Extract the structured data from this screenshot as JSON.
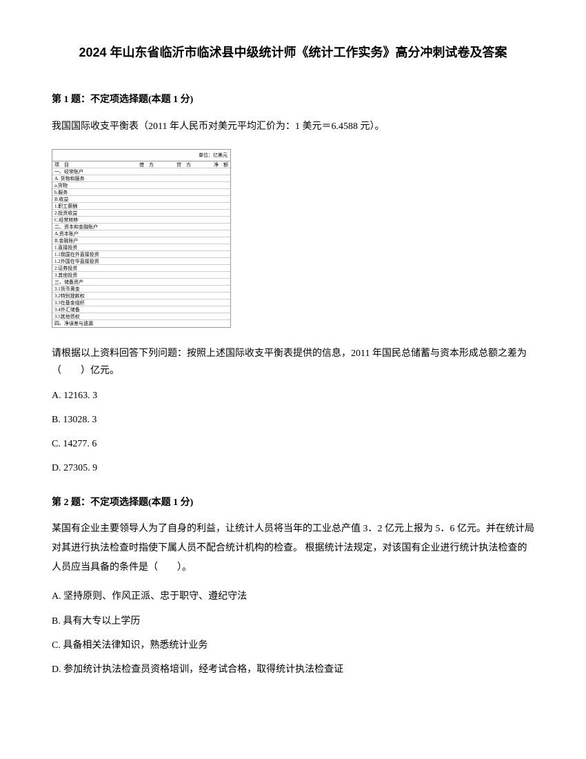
{
  "title": "2024 年山东省临沂市临沭县中级统计师《统计工作实务》高分冲刺试卷及答案",
  "question1": {
    "header": "第 1 题：不定项选择题(本题 1 分)",
    "intro": "我国国际收支平衡表（2011 年人民币对美元平均汇价为：1 美元＝6.4588 元）。",
    "tableUnit": "单位：亿美元",
    "tableRows": [
      {
        "c1": "项　目",
        "c2": "借　方",
        "c3": "贷　方",
        "c4": "净　额"
      },
      {
        "c1": "一、经常账户",
        "c2": "",
        "c3": "",
        "c4": ""
      },
      {
        "c1": "A. 货物和服务",
        "c2": "",
        "c3": "",
        "c4": ""
      },
      {
        "c1": "a.货物",
        "c2": "",
        "c3": "",
        "c4": ""
      },
      {
        "c1": "b.服务",
        "c2": "",
        "c3": "",
        "c4": ""
      },
      {
        "c1": "B.收益",
        "c2": "",
        "c3": "",
        "c4": ""
      },
      {
        "c1": "1.职工薪酬",
        "c2": "",
        "c3": "",
        "c4": ""
      },
      {
        "c1": "2.投资收益",
        "c2": "",
        "c3": "",
        "c4": ""
      },
      {
        "c1": "C.经常转移",
        "c2": "",
        "c3": "",
        "c4": ""
      },
      {
        "c1": "二、资本和金融账户",
        "c2": "",
        "c3": "",
        "c4": ""
      },
      {
        "c1": "A.资本账户",
        "c2": "",
        "c3": "",
        "c4": ""
      },
      {
        "c1": "B.金融账户",
        "c2": "",
        "c3": "",
        "c4": ""
      },
      {
        "c1": "1.直接投资",
        "c2": "",
        "c3": "",
        "c4": ""
      },
      {
        "c1": "1.1我国在外直接投资",
        "c2": "",
        "c3": "",
        "c4": ""
      },
      {
        "c1": "1.2外国在华直接投资",
        "c2": "",
        "c3": "",
        "c4": ""
      },
      {
        "c1": "2.证券投资",
        "c2": "",
        "c3": "",
        "c4": ""
      },
      {
        "c1": "3.其他投资",
        "c2": "",
        "c3": "",
        "c4": ""
      },
      {
        "c1": "三、储备资产",
        "c2": "",
        "c3": "",
        "c4": ""
      },
      {
        "c1": "3.1货币黄金",
        "c2": "",
        "c3": "",
        "c4": ""
      },
      {
        "c1": "3.2特别提款权",
        "c2": "",
        "c3": "",
        "c4": ""
      },
      {
        "c1": "3.3在基金组织",
        "c2": "",
        "c3": "",
        "c4": ""
      },
      {
        "c1": "3.4外汇储备",
        "c2": "",
        "c3": "",
        "c4": ""
      },
      {
        "c1": "3.5其他债权",
        "c2": "",
        "c3": "",
        "c4": ""
      },
      {
        "c1": "四、净误差与遗漏",
        "c2": "",
        "c3": "",
        "c4": ""
      }
    ],
    "body": "请根据以上资料回答下列问题：按照上述国际收支平衡表提供的信息，2011 年国民总储蓄与资本形成总额之差为（　　）亿元。",
    "options": {
      "A": "A. 12163. 3",
      "B": "B. 13028. 3",
      "C": "C. 14277. 6",
      "D": "D. 27305. 9"
    }
  },
  "question2": {
    "header": "第 2 题：不定项选择题(本题 1 分)",
    "body": "某国有企业主要领导人为了自身的利益，让统计人员将当年的工业总产值 3．2 亿元上报为 5．6 亿元。并在统计局对其进行执法检查时指使下属人员不配合统计机构的检查。 根据统计法规定，对该国有企业进行统计执法检查的人员应当具备的条件是（　　）。",
    "options": {
      "A": "A. 坚持原则、作风正派、忠于职守、遵纪守法",
      "B": "B. 具有大专以上学历",
      "C": "C. 具备相关法律知识，熟悉统计业务",
      "D": "D. 参加统计执法检查员资格培训，经考试合格，取得统计执法检查证"
    }
  }
}
